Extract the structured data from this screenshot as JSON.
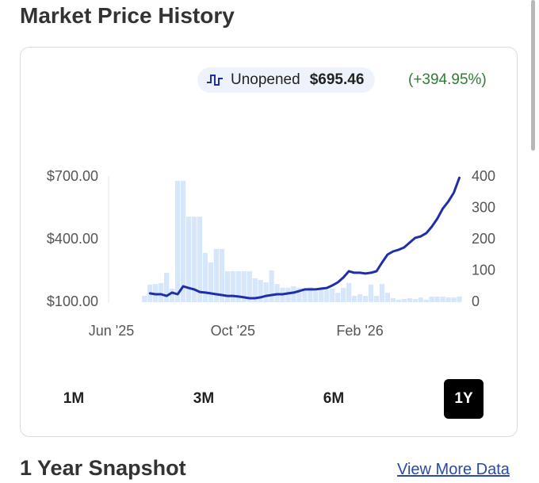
{
  "header": {
    "title": "Market Price History"
  },
  "legend": {
    "label": "Unopened",
    "price": "$695.46",
    "change": "(+394.95%)"
  },
  "chart_data": {
    "type": "combo",
    "categories": [
      "Jun '25",
      null,
      null,
      null,
      null,
      null,
      null,
      null,
      null,
      null,
      null,
      null,
      null,
      null,
      null,
      null,
      null,
      null,
      null,
      null,
      null,
      null,
      "Oct '25",
      null,
      null,
      null,
      null,
      null,
      null,
      null,
      null,
      null,
      null,
      null,
      null,
      null,
      null,
      null,
      null,
      null,
      null,
      null,
      null,
      null,
      null,
      "Feb '26",
      null,
      null,
      null,
      null,
      null,
      null,
      null,
      null,
      null,
      null,
      null,
      null,
      null,
      null,
      null,
      null,
      null,
      null
    ],
    "series": [
      {
        "type": "bar",
        "axis": "y2",
        "color": "#d6e6fb",
        "values": [
          null,
          null,
          null,
          null,
          null,
          null,
          20,
          56,
          58,
          61,
          94,
          43,
          387,
          387,
          273,
          273,
          273,
          157,
          127,
          170,
          170,
          99,
          99,
          99,
          99,
          99,
          76,
          71,
          63,
          101,
          58,
          46,
          46,
          51,
          46,
          43,
          48,
          35,
          46,
          38,
          43,
          30,
          46,
          61,
          20,
          25,
          20,
          56,
          20,
          58,
          30,
          13,
          8,
          10,
          13,
          10,
          15,
          8,
          18,
          18,
          18,
          15,
          15,
          18
        ]
      },
      {
        "name": "Unopened",
        "type": "line",
        "axis": "y",
        "color": "#1f2fa8",
        "values": [
          null,
          null,
          null,
          null,
          null,
          null,
          null,
          142,
          138,
          138,
          130,
          146,
          138,
          176,
          168,
          161,
          149,
          146,
          142,
          138,
          134,
          130,
          130,
          127,
          123,
          119,
          119,
          123,
          130,
          134,
          138,
          138,
          142,
          146,
          153,
          161,
          161,
          161,
          165,
          168,
          180,
          195,
          218,
          248,
          241,
          241,
          237,
          241,
          248,
          290,
          328,
          343,
          351,
          362,
          385,
          408,
          415,
          430,
          461,
          499,
          548,
          582,
          624,
          695.46
        ]
      }
    ],
    "ylim": [
      100,
      700
    ],
    "yticks": [
      {
        "value": 100,
        "label": "$100.00"
      },
      {
        "value": 400,
        "label": "$400.00"
      },
      {
        "value": 700,
        "label": "$700.00"
      }
    ],
    "y2lim": [
      0,
      400
    ],
    "y2ticks": [
      0,
      100,
      200,
      300,
      400
    ]
  },
  "ranges": [
    "1M",
    "3M",
    "6M",
    "1Y"
  ],
  "selected_range": "1Y",
  "footer": {
    "title": "1 Year Snapshot",
    "link": "View More Data"
  }
}
